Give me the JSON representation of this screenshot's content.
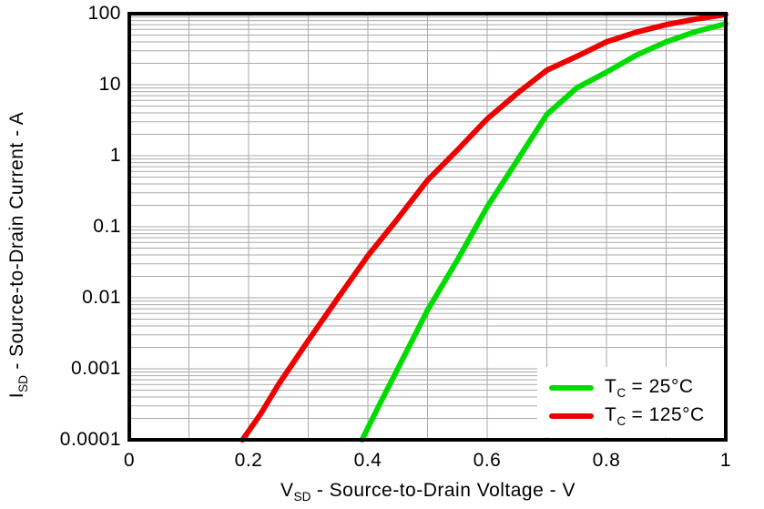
{
  "chart_data": {
    "type": "line",
    "title": "",
    "x_axis": {
      "label_parts": {
        "pre": "V",
        "sub": "SD",
        "post": " - Source-to-Drain Voltage - V"
      },
      "scale": "linear",
      "min": 0,
      "max": 1,
      "tick_values": [
        0,
        0.2,
        0.4,
        0.6,
        0.8,
        1
      ],
      "tick_labels": [
        "0",
        "0.2",
        "0.4",
        "0.6",
        "0.8",
        "1"
      ]
    },
    "y_axis": {
      "label_parts": {
        "pre": "I",
        "sub": "SD",
        "post": " - Source-to-Drain Current - A"
      },
      "scale": "log",
      "min": 0.0001,
      "max": 100,
      "tick_values": [
        100,
        10,
        1,
        0.1,
        0.01,
        0.001,
        0.0001
      ],
      "tick_labels": [
        "100",
        "10",
        "1",
        "0.1",
        "0.01",
        "0.001",
        "0.0001"
      ]
    },
    "grid": {
      "vertical_step": 0.1,
      "log_minor_horizontal": true,
      "color": "#A9A9A9"
    },
    "frame_color": "#000000",
    "background_color": "#FFFFFF",
    "legend": {
      "position": "bottom-right",
      "background": "#FFFFFF"
    },
    "series": [
      {
        "name": "TC = 25°C",
        "label_parts": {
          "pre": "T",
          "sub": "C",
          "post": " = 25°C"
        },
        "color": "#00DC00",
        "points": [
          [
            0.39,
            0.0001
          ],
          [
            0.42,
            0.00032
          ],
          [
            0.45,
            0.001
          ],
          [
            0.5,
            0.0067
          ],
          [
            0.55,
            0.034
          ],
          [
            0.6,
            0.19
          ],
          [
            0.65,
            0.85
          ],
          [
            0.7,
            3.8
          ],
          [
            0.75,
            9
          ],
          [
            0.8,
            15
          ],
          [
            0.85,
            26
          ],
          [
            0.9,
            40
          ],
          [
            0.95,
            56
          ],
          [
            1.0,
            72
          ]
        ]
      },
      {
        "name": "TC = 125°C",
        "label_parts": {
          "pre": "T",
          "sub": "C",
          "post": " = 125°C"
        },
        "color": "#EC0000",
        "points": [
          [
            0.19,
            0.0001
          ],
          [
            0.22,
            0.00023
          ],
          [
            0.25,
            0.0006
          ],
          [
            0.3,
            0.0025
          ],
          [
            0.35,
            0.01
          ],
          [
            0.4,
            0.039
          ],
          [
            0.45,
            0.13
          ],
          [
            0.5,
            0.45
          ],
          [
            0.55,
            1.2
          ],
          [
            0.6,
            3.3
          ],
          [
            0.65,
            7.5
          ],
          [
            0.7,
            16
          ],
          [
            0.75,
            25
          ],
          [
            0.8,
            40
          ],
          [
            0.85,
            55
          ],
          [
            0.9,
            70
          ],
          [
            0.95,
            84
          ],
          [
            1.0,
            97
          ]
        ]
      }
    ]
  }
}
